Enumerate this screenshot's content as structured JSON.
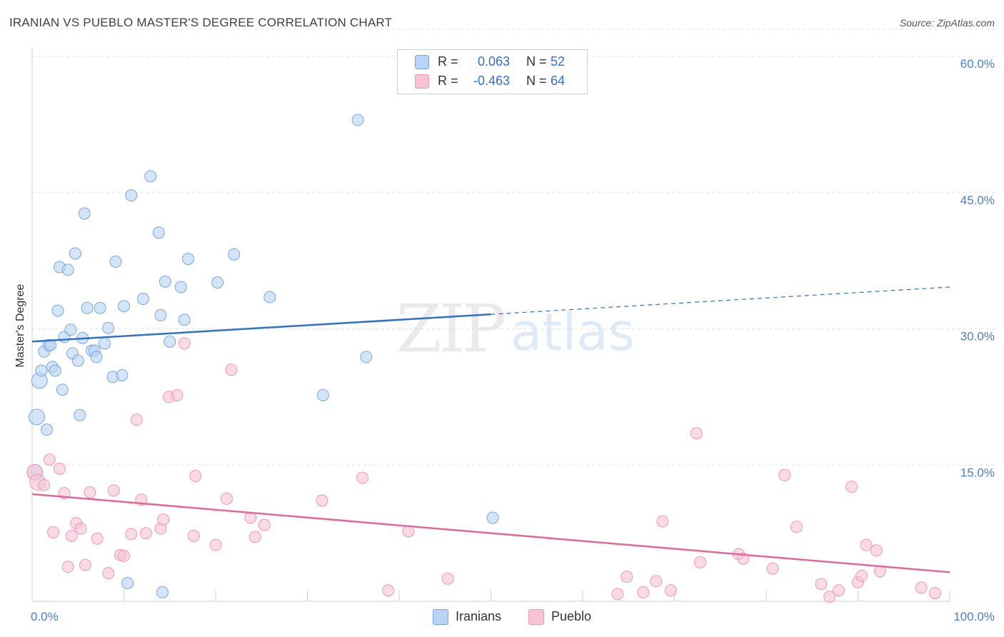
{
  "title": "IRANIAN VS PUEBLO MASTER'S DEGREE CORRELATION CHART",
  "source": "Source: ZipAtlas.com",
  "watermark": {
    "zip": "ZIP",
    "atlas": "atlas"
  },
  "colors": {
    "iranians_fill": "#b9d3f4",
    "iranians_stroke": "#7aa6e0",
    "iranians_line": "#2e72c9",
    "pueblo_fill": "#f7c3d3",
    "pueblo_stroke": "#ee98b3",
    "pueblo_line": "#e2679a",
    "tick_text": "#4a7fd0",
    "grid": "#e3e3e3"
  },
  "legend": {
    "rows": [
      {
        "r_label": "R =",
        "r_value": "0.063",
        "n_label": "N =",
        "n_value": "52"
      },
      {
        "r_label": "R =",
        "r_value": "-0.463",
        "n_label": "N =",
        "n_value": "64"
      }
    ]
  },
  "bottom_legend": {
    "iranians": "Iranians",
    "pueblo": "Pueblo"
  },
  "chart_data": {
    "type": "scatter",
    "title": "IRANIAN VS PUEBLO MASTER'S DEGREE CORRELATION CHART",
    "xlabel": "",
    "ylabel": "Master's Degree",
    "xlim": [
      0,
      100
    ],
    "ylim": [
      0,
      63
    ],
    "x_tick_labels": [
      "0.0%",
      "100.0%"
    ],
    "y_ticks": [
      15,
      30,
      45,
      60
    ],
    "y_tick_labels": [
      "15.0%",
      "30.0%",
      "45.0%",
      "60.0%"
    ],
    "grid": "horizontal dashed",
    "legend_position": "top-center",
    "series": [
      {
        "name": "Iranians",
        "r": 0.063,
        "n": 52,
        "trend": {
          "x0": 0,
          "y0": 28.6,
          "x1": 50,
          "y1": 31.6,
          "dashed_to_x": 100,
          "dashed_to_y": 34.6
        },
        "points": [
          [
            0.3,
            14.2
          ],
          [
            0.5,
            20.3
          ],
          [
            0.8,
            24.3
          ],
          [
            1.0,
            25.4
          ],
          [
            1.3,
            27.5
          ],
          [
            1.6,
            18.9
          ],
          [
            1.8,
            28.2
          ],
          [
            2.0,
            28.2
          ],
          [
            2.2,
            25.8
          ],
          [
            2.5,
            25.4
          ],
          [
            2.8,
            32.0
          ],
          [
            3.0,
            36.8
          ],
          [
            3.3,
            23.3
          ],
          [
            3.5,
            29.1
          ],
          [
            3.9,
            36.5
          ],
          [
            4.2,
            29.9
          ],
          [
            4.4,
            27.3
          ],
          [
            4.7,
            38.3
          ],
          [
            5.0,
            26.5
          ],
          [
            5.2,
            20.5
          ],
          [
            5.5,
            29.0
          ],
          [
            5.7,
            42.7
          ],
          [
            6.0,
            32.3
          ],
          [
            6.5,
            27.6
          ],
          [
            6.8,
            27.6
          ],
          [
            7.0,
            26.9
          ],
          [
            7.4,
            32.3
          ],
          [
            7.9,
            28.4
          ],
          [
            8.3,
            30.1
          ],
          [
            8.8,
            24.7
          ],
          [
            9.1,
            37.4
          ],
          [
            9.8,
            24.9
          ],
          [
            10.0,
            32.5
          ],
          [
            10.4,
            2.0
          ],
          [
            10.8,
            44.7
          ],
          [
            12.1,
            33.3
          ],
          [
            12.9,
            46.8
          ],
          [
            13.8,
            40.6
          ],
          [
            14.0,
            31.5
          ],
          [
            14.2,
            1.0
          ],
          [
            14.5,
            35.2
          ],
          [
            15.0,
            28.6
          ],
          [
            16.2,
            34.6
          ],
          [
            16.6,
            31.0
          ],
          [
            17.0,
            37.7
          ],
          [
            20.2,
            35.1
          ],
          [
            22.0,
            38.2
          ],
          [
            25.9,
            33.5
          ],
          [
            31.7,
            22.7
          ],
          [
            35.5,
            53.0
          ],
          [
            36.4,
            26.9
          ],
          [
            50.2,
            9.2
          ]
        ]
      },
      {
        "name": "Pueblo",
        "r": -0.463,
        "n": 64,
        "trend": {
          "x0": 0,
          "y0": 11.8,
          "x1": 100,
          "y1": 3.2
        },
        "points": [
          [
            0.3,
            14.2
          ],
          [
            0.6,
            13.1
          ],
          [
            1.3,
            12.8
          ],
          [
            1.9,
            15.6
          ],
          [
            2.3,
            7.6
          ],
          [
            3.0,
            14.6
          ],
          [
            3.5,
            11.9
          ],
          [
            3.9,
            3.8
          ],
          [
            4.3,
            7.2
          ],
          [
            4.8,
            8.6
          ],
          [
            5.3,
            8.0
          ],
          [
            5.8,
            4.0
          ],
          [
            6.3,
            12.0
          ],
          [
            7.1,
            6.9
          ],
          [
            8.3,
            3.1
          ],
          [
            8.9,
            12.2
          ],
          [
            9.6,
            5.1
          ],
          [
            10.0,
            5.0
          ],
          [
            10.8,
            7.4
          ],
          [
            11.4,
            20.0
          ],
          [
            11.9,
            11.2
          ],
          [
            12.4,
            7.5
          ],
          [
            14.0,
            8.0
          ],
          [
            14.3,
            9.0
          ],
          [
            14.9,
            22.5
          ],
          [
            15.8,
            22.7
          ],
          [
            16.6,
            28.4
          ],
          [
            17.6,
            7.2
          ],
          [
            17.8,
            13.8
          ],
          [
            20.0,
            6.2
          ],
          [
            21.2,
            11.3
          ],
          [
            21.7,
            25.5
          ],
          [
            23.8,
            9.2
          ],
          [
            24.3,
            7.1
          ],
          [
            25.3,
            8.4
          ],
          [
            31.6,
            11.1
          ],
          [
            36.0,
            13.6
          ],
          [
            38.8,
            1.2
          ],
          [
            41.0,
            7.7
          ],
          [
            45.3,
            2.5
          ],
          [
            63.8,
            0.8
          ],
          [
            64.8,
            2.7
          ],
          [
            66.6,
            1.0
          ],
          [
            68.0,
            2.2
          ],
          [
            68.7,
            8.8
          ],
          [
            69.6,
            1.2
          ],
          [
            72.4,
            18.5
          ],
          [
            72.8,
            4.3
          ],
          [
            77.0,
            5.2
          ],
          [
            77.5,
            4.7
          ],
          [
            80.7,
            3.6
          ],
          [
            82.0,
            13.9
          ],
          [
            83.3,
            8.2
          ],
          [
            86.0,
            1.9
          ],
          [
            86.9,
            0.5
          ],
          [
            87.9,
            1.2
          ],
          [
            89.3,
            12.6
          ],
          [
            90.0,
            2.1
          ],
          [
            90.4,
            2.8
          ],
          [
            90.9,
            6.2
          ],
          [
            92.0,
            5.6
          ],
          [
            92.4,
            3.3
          ],
          [
            96.9,
            1.5
          ],
          [
            98.4,
            0.9
          ]
        ]
      }
    ]
  }
}
